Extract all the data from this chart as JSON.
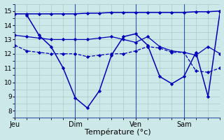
{
  "background_color": "#cce8e8",
  "grid_color": "#aacccc",
  "line_color": "#0000bb",
  "marker_color": "#0000bb",
  "xlabel": "Température (°c)",
  "xlabel_fontsize": 8,
  "yticks": [
    8,
    9,
    10,
    11,
    12,
    13,
    14,
    15
  ],
  "ylim": [
    7.5,
    15.5
  ],
  "day_labels": [
    "Jeu",
    "Dim",
    "Ven",
    "Sam"
  ],
  "day_positions": [
    0,
    5,
    10,
    14
  ],
  "series": [
    {
      "x": [
        0,
        1,
        2,
        3,
        4,
        5,
        6,
        7,
        8,
        9,
        10,
        11,
        12,
        13,
        14,
        15,
        16,
        17
      ],
      "y": [
        12.6,
        12.2,
        12.1,
        12.0,
        12.0,
        12.0,
        11.8,
        11.9,
        12.0,
        12.0,
        12.2,
        12.5,
        12.4,
        12.1,
        12.1,
        10.8,
        10.7,
        11.0
      ],
      "linestyle": "--",
      "linewidth": 0.9
    },
    {
      "x": [
        0,
        1,
        2,
        3,
        4,
        5,
        6,
        7,
        8,
        9,
        10,
        11,
        12,
        13,
        14,
        15,
        16,
        17
      ],
      "y": [
        13.3,
        13.2,
        13.1,
        13.0,
        13.0,
        13.0,
        13.0,
        13.1,
        13.2,
        13.0,
        12.8,
        13.2,
        12.5,
        12.2,
        12.1,
        11.9,
        12.5,
        12.0
      ],
      "linestyle": "-",
      "linewidth": 0.9
    },
    {
      "x": [
        1,
        2,
        3,
        4,
        5,
        6,
        7,
        8,
        9,
        10,
        11,
        12,
        13,
        14,
        15,
        16,
        17
      ],
      "y": [
        14.7,
        13.3,
        12.5,
        11.0,
        8.9,
        8.2,
        9.4,
        11.9,
        13.2,
        13.4,
        12.6,
        10.4,
        9.9,
        10.4,
        12.1,
        9.0,
        15.0
      ],
      "linestyle": "-",
      "linewidth": 1.1
    },
    {
      "x": [
        0,
        1,
        2,
        3,
        4,
        5,
        6,
        7,
        8,
        9,
        10,
        11,
        12,
        13,
        14,
        15,
        16,
        17
      ],
      "y": [
        14.8,
        14.8,
        14.8,
        14.8,
        14.8,
        14.8,
        14.85,
        14.85,
        14.9,
        14.9,
        14.9,
        14.9,
        14.9,
        14.9,
        14.9,
        14.95,
        14.95,
        15.0
      ],
      "linestyle": "-",
      "linewidth": 1.1
    }
  ],
  "xlim": [
    0,
    17
  ],
  "figsize": [
    3.2,
    2.0
  ],
  "dpi": 100
}
